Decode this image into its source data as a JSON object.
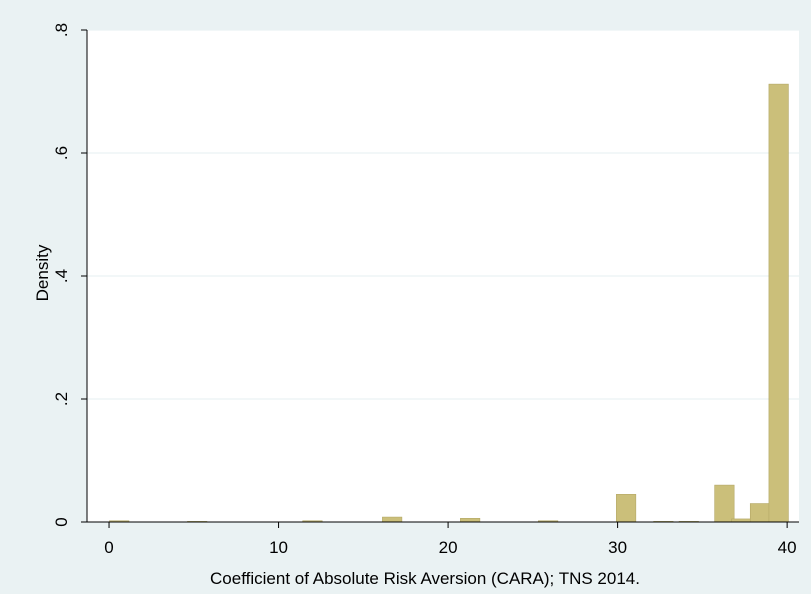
{
  "colors": {
    "outer_background": "#eaf2f3",
    "plot_background": "#ffffff",
    "bar_fill": "#cbbf7a",
    "bar_stroke": "#b3a765",
    "grid": "#eaf2f3",
    "axis": "#000000"
  },
  "chart_data": {
    "type": "bar",
    "xlabel": "Coefficient of Absolute Risk Aversion (CARA); TNS 2014.",
    "ylabel": "Density",
    "xlim": [
      -1.3,
      40.7
    ],
    "ylim": [
      0,
      0.8
    ],
    "grid": true,
    "x_ticks": [
      {
        "value": 0,
        "label": "0"
      },
      {
        "value": 10,
        "label": "10"
      },
      {
        "value": 20,
        "label": "20"
      },
      {
        "value": 30,
        "label": "30"
      },
      {
        "value": 40,
        "label": "40"
      }
    ],
    "y_ticks": [
      {
        "value": 0,
        "label": "0"
      },
      {
        "value": 0.2,
        "label": ".2"
      },
      {
        "value": 0.4,
        "label": ".4"
      },
      {
        "value": 0.6,
        "label": ".6"
      },
      {
        "value": 0.8,
        "label": ".8"
      }
    ],
    "bar_width": 1.15,
    "bars": [
      {
        "x": 0.6,
        "y": 0.002
      },
      {
        "x": 5.2,
        "y": 0.001
      },
      {
        "x": 12.0,
        "y": 0.002
      },
      {
        "x": 16.7,
        "y": 0.008
      },
      {
        "x": 21.3,
        "y": 0.006
      },
      {
        "x": 25.9,
        "y": 0.002
      },
      {
        "x": 30.5,
        "y": 0.045
      },
      {
        "x": 32.7,
        "y": 0.001
      },
      {
        "x": 34.2,
        "y": 0.001
      },
      {
        "x": 36.3,
        "y": 0.06
      },
      {
        "x": 37.3,
        "y": 0.005
      },
      {
        "x": 38.4,
        "y": 0.03
      },
      {
        "x": 39.5,
        "y": 0.712
      }
    ]
  }
}
